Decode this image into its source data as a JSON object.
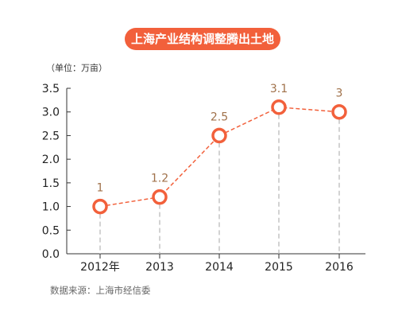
{
  "chart_data": {
    "type": "line",
    "title": "上海产业结构调整腾出土地",
    "unit_label": "（单位：万亩）",
    "source": "数据来源：上海市经信委",
    "categories": [
      "2012年",
      "2013",
      "2014",
      "2015",
      "2016"
    ],
    "values": [
      1,
      1.2,
      2.5,
      3.1,
      3
    ],
    "data_labels": [
      "1",
      "1.2",
      "2.5",
      "3.1",
      "3"
    ],
    "yticks": [
      "0.0",
      "0.5",
      "1.0",
      "1.5",
      "2.0",
      "2.5",
      "3.0",
      "3.5"
    ],
    "ylim": [
      0,
      3.5
    ],
    "grid": false,
    "colors": {
      "line": "#f2603b",
      "label": "#a0714a",
      "axis": "#333333",
      "dropline": "#bbbbbb"
    }
  }
}
